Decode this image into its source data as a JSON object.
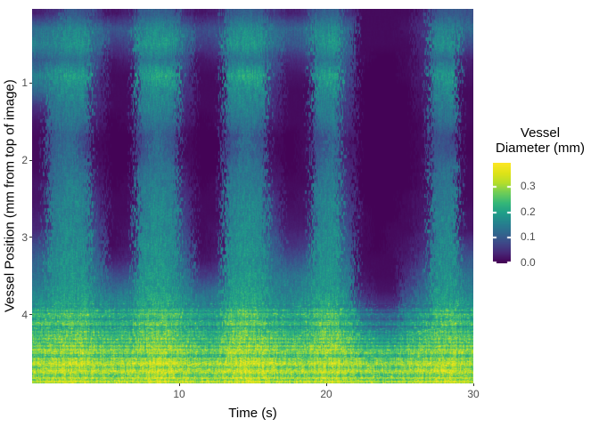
{
  "figure": {
    "background": "#ffffff"
  },
  "axes": {
    "x": {
      "label": "Time (s)",
      "ticks": [
        10,
        20,
        30
      ],
      "range": [
        0,
        30
      ]
    },
    "y": {
      "label": "Vessel Position (mm from top of image)",
      "ticks": [
        1,
        2,
        3,
        4
      ],
      "range": [
        0.04,
        4.89
      ],
      "inverted": true
    }
  },
  "legend": {
    "title_lines": [
      "Vessel",
      "Diameter (mm)"
    ],
    "ticks": [
      0.0,
      0.1,
      0.2,
      0.3
    ],
    "tick_labels": [
      "0.0",
      "0.1",
      "0.2",
      "0.3"
    ],
    "limits": [
      0,
      0.39
    ],
    "tick_mark_color": "#ffffff"
  },
  "chart_data": {
    "type": "heatmap",
    "title": "",
    "xlabel": "Time (s)",
    "ylabel": "Vessel Position (mm from top of image)",
    "value_label": "Vessel Diameter (mm)",
    "x_range": [
      0,
      30
    ],
    "y_range": [
      0.04,
      4.89
    ],
    "value_range": [
      0,
      0.39
    ],
    "grid": false,
    "legend_position": "right",
    "colormap": "viridis",
    "colormap_stops": [
      "#440154",
      "#482878",
      "#3e4a89",
      "#31688e",
      "#26828e",
      "#1f9e89",
      "#35b779",
      "#6dcd59",
      "#b4de2c",
      "#dfe318",
      "#fde725"
    ],
    "x_bins": {
      "start": 0,
      "step": 1,
      "count": 30,
      "unit": "s"
    },
    "y_bins": {
      "start": 0,
      "step": 0.2,
      "count": 24,
      "unit": "mm"
    },
    "values": [
      [
        0.03,
        0.05,
        0.1,
        0.09,
        0.05,
        0.02,
        0.03,
        0.1,
        0.11,
        0.1,
        0.04,
        0.02,
        0.03,
        0.1,
        0.11,
        0.1,
        0.05,
        0.03,
        0.04,
        0.1,
        0.11,
        0.05,
        0.01,
        0.01,
        0.01,
        0.01,
        0.03,
        0.09,
        0.1,
        0.09
      ],
      [
        0.13,
        0.14,
        0.16,
        0.16,
        0.12,
        0.09,
        0.1,
        0.16,
        0.17,
        0.16,
        0.12,
        0.08,
        0.09,
        0.16,
        0.17,
        0.16,
        0.13,
        0.11,
        0.12,
        0.16,
        0.17,
        0.12,
        0.01,
        0.01,
        0.01,
        0.02,
        0.05,
        0.15,
        0.16,
        0.12
      ],
      [
        0.15,
        0.16,
        0.18,
        0.18,
        0.12,
        0.06,
        0.07,
        0.18,
        0.19,
        0.18,
        0.12,
        0.06,
        0.07,
        0.18,
        0.19,
        0.18,
        0.13,
        0.09,
        0.1,
        0.18,
        0.19,
        0.11,
        0.01,
        0.01,
        0.01,
        0.01,
        0.04,
        0.17,
        0.18,
        0.08
      ],
      [
        0.1,
        0.12,
        0.13,
        0.13,
        0.08,
        0.02,
        0.03,
        0.13,
        0.14,
        0.13,
        0.08,
        0.02,
        0.03,
        0.13,
        0.14,
        0.13,
        0.08,
        0.04,
        0.05,
        0.13,
        0.14,
        0.09,
        0.01,
        0.0,
        0.0,
        0.01,
        0.03,
        0.12,
        0.13,
        0.03
      ],
      [
        0.15,
        0.18,
        0.2,
        0.19,
        0.06,
        0.01,
        0.01,
        0.19,
        0.21,
        0.2,
        0.06,
        0.01,
        0.01,
        0.19,
        0.21,
        0.2,
        0.07,
        0.02,
        0.02,
        0.19,
        0.2,
        0.08,
        0.0,
        0.0,
        0.0,
        0.01,
        0.03,
        0.18,
        0.19,
        0.02
      ],
      [
        0.12,
        0.15,
        0.17,
        0.16,
        0.05,
        0.01,
        0.01,
        0.16,
        0.17,
        0.17,
        0.05,
        0.01,
        0.01,
        0.16,
        0.17,
        0.17,
        0.05,
        0.01,
        0.01,
        0.16,
        0.17,
        0.07,
        0.0,
        0.0,
        0.0,
        0.0,
        0.02,
        0.15,
        0.16,
        0.01
      ],
      [
        0.05,
        0.14,
        0.15,
        0.15,
        0.04,
        0.01,
        0.01,
        0.15,
        0.16,
        0.15,
        0.04,
        0.01,
        0.01,
        0.15,
        0.16,
        0.15,
        0.04,
        0.01,
        0.01,
        0.15,
        0.15,
        0.06,
        0.0,
        0.0,
        0.0,
        0.0,
        0.02,
        0.14,
        0.15,
        0.01
      ],
      [
        0.02,
        0.12,
        0.14,
        0.13,
        0.03,
        0.0,
        0.01,
        0.13,
        0.14,
        0.13,
        0.03,
        0.0,
        0.01,
        0.13,
        0.14,
        0.13,
        0.03,
        0.01,
        0.01,
        0.13,
        0.14,
        0.05,
        0.0,
        0.0,
        0.0,
        0.0,
        0.01,
        0.12,
        0.13,
        0.01
      ],
      [
        0.01,
        0.1,
        0.12,
        0.08,
        0.01,
        0.0,
        0.0,
        0.08,
        0.12,
        0.09,
        0.01,
        0.0,
        0.0,
        0.08,
        0.12,
        0.09,
        0.01,
        0.0,
        0.01,
        0.08,
        0.12,
        0.03,
        0.0,
        0.0,
        0.0,
        0.0,
        0.01,
        0.09,
        0.08,
        0.005
      ],
      [
        0.01,
        0.11,
        0.13,
        0.09,
        0.01,
        0.0,
        0.0,
        0.09,
        0.13,
        0.1,
        0.01,
        0.0,
        0.0,
        0.09,
        0.13,
        0.1,
        0.01,
        0.0,
        0.01,
        0.09,
        0.13,
        0.03,
        0.0,
        0.0,
        0.0,
        0.0,
        0.01,
        0.1,
        0.09,
        0.005
      ],
      [
        0.01,
        0.12,
        0.14,
        0.12,
        0.02,
        0.0,
        0.0,
        0.12,
        0.14,
        0.13,
        0.02,
        0.0,
        0.0,
        0.12,
        0.14,
        0.13,
        0.02,
        0.0,
        0.01,
        0.12,
        0.14,
        0.04,
        0.0,
        0.0,
        0.0,
        0.0,
        0.01,
        0.12,
        0.13,
        0.01
      ],
      [
        0.02,
        0.13,
        0.15,
        0.14,
        0.03,
        0.0,
        0.01,
        0.14,
        0.15,
        0.14,
        0.03,
        0.0,
        0.01,
        0.14,
        0.15,
        0.14,
        0.03,
        0.01,
        0.01,
        0.14,
        0.15,
        0.05,
        0.0,
        0.0,
        0.0,
        0.0,
        0.01,
        0.13,
        0.14,
        0.01
      ],
      [
        0.02,
        0.14,
        0.16,
        0.15,
        0.05,
        0.01,
        0.01,
        0.15,
        0.16,
        0.15,
        0.05,
        0.01,
        0.01,
        0.15,
        0.16,
        0.15,
        0.05,
        0.01,
        0.02,
        0.15,
        0.16,
        0.06,
        0.0,
        0.0,
        0.0,
        0.01,
        0.02,
        0.14,
        0.15,
        0.01
      ],
      [
        0.03,
        0.15,
        0.16,
        0.15,
        0.06,
        0.01,
        0.01,
        0.15,
        0.17,
        0.16,
        0.06,
        0.01,
        0.01,
        0.15,
        0.17,
        0.16,
        0.06,
        0.02,
        0.02,
        0.15,
        0.16,
        0.07,
        0.01,
        0.0,
        0.0,
        0.01,
        0.02,
        0.15,
        0.16,
        0.02
      ],
      [
        0.04,
        0.15,
        0.17,
        0.16,
        0.07,
        0.01,
        0.02,
        0.16,
        0.17,
        0.16,
        0.07,
        0.01,
        0.02,
        0.16,
        0.17,
        0.16,
        0.08,
        0.03,
        0.03,
        0.16,
        0.17,
        0.08,
        0.01,
        0.0,
        0.01,
        0.01,
        0.03,
        0.15,
        0.16,
        0.02
      ],
      [
        0.08,
        0.16,
        0.17,
        0.17,
        0.09,
        0.01,
        0.02,
        0.17,
        0.18,
        0.17,
        0.09,
        0.01,
        0.02,
        0.17,
        0.18,
        0.17,
        0.1,
        0.05,
        0.06,
        0.17,
        0.17,
        0.1,
        0.01,
        0.0,
        0.01,
        0.02,
        0.04,
        0.16,
        0.17,
        0.06
      ],
      [
        0.11,
        0.17,
        0.18,
        0.17,
        0.11,
        0.03,
        0.04,
        0.17,
        0.18,
        0.17,
        0.11,
        0.02,
        0.03,
        0.17,
        0.18,
        0.17,
        0.12,
        0.09,
        0.1,
        0.17,
        0.18,
        0.12,
        0.01,
        0.01,
        0.01,
        0.03,
        0.06,
        0.17,
        0.17,
        0.1
      ],
      [
        0.13,
        0.17,
        0.18,
        0.18,
        0.13,
        0.08,
        0.09,
        0.18,
        0.19,
        0.18,
        0.13,
        0.06,
        0.07,
        0.18,
        0.19,
        0.18,
        0.14,
        0.13,
        0.14,
        0.18,
        0.18,
        0.14,
        0.02,
        0.01,
        0.01,
        0.05,
        0.09,
        0.17,
        0.18,
        0.13
      ],
      [
        0.15,
        0.18,
        0.19,
        0.19,
        0.15,
        0.13,
        0.14,
        0.19,
        0.2,
        0.19,
        0.15,
        0.12,
        0.13,
        0.19,
        0.2,
        0.19,
        0.16,
        0.15,
        0.16,
        0.19,
        0.19,
        0.16,
        0.04,
        0.02,
        0.02,
        0.08,
        0.12,
        0.18,
        0.19,
        0.15
      ],
      [
        0.18,
        0.2,
        0.21,
        0.21,
        0.18,
        0.17,
        0.17,
        0.21,
        0.22,
        0.21,
        0.18,
        0.16,
        0.16,
        0.21,
        0.22,
        0.21,
        0.18,
        0.17,
        0.18,
        0.21,
        0.21,
        0.18,
        0.1,
        0.06,
        0.06,
        0.12,
        0.15,
        0.2,
        0.21,
        0.18
      ],
      [
        0.22,
        0.23,
        0.24,
        0.24,
        0.21,
        0.2,
        0.2,
        0.24,
        0.25,
        0.24,
        0.21,
        0.19,
        0.19,
        0.24,
        0.25,
        0.24,
        0.21,
        0.2,
        0.2,
        0.24,
        0.24,
        0.21,
        0.15,
        0.13,
        0.13,
        0.17,
        0.19,
        0.23,
        0.24,
        0.21
      ],
      [
        0.24,
        0.25,
        0.26,
        0.26,
        0.24,
        0.23,
        0.23,
        0.26,
        0.27,
        0.26,
        0.24,
        0.22,
        0.22,
        0.26,
        0.27,
        0.26,
        0.24,
        0.23,
        0.23,
        0.26,
        0.26,
        0.24,
        0.2,
        0.18,
        0.18,
        0.21,
        0.22,
        0.25,
        0.26,
        0.24
      ],
      [
        0.27,
        0.27,
        0.28,
        0.28,
        0.27,
        0.26,
        0.26,
        0.28,
        0.29,
        0.28,
        0.27,
        0.25,
        0.25,
        0.28,
        0.29,
        0.28,
        0.27,
        0.26,
        0.26,
        0.28,
        0.28,
        0.27,
        0.24,
        0.23,
        0.23,
        0.25,
        0.26,
        0.27,
        0.28,
        0.27
      ],
      [
        0.29,
        0.3,
        0.31,
        0.3,
        0.29,
        0.29,
        0.29,
        0.3,
        0.32,
        0.31,
        0.29,
        0.28,
        0.29,
        0.3,
        0.32,
        0.31,
        0.29,
        0.29,
        0.29,
        0.3,
        0.31,
        0.29,
        0.28,
        0.27,
        0.27,
        0.28,
        0.29,
        0.3,
        0.31,
        0.29
      ]
    ]
  }
}
